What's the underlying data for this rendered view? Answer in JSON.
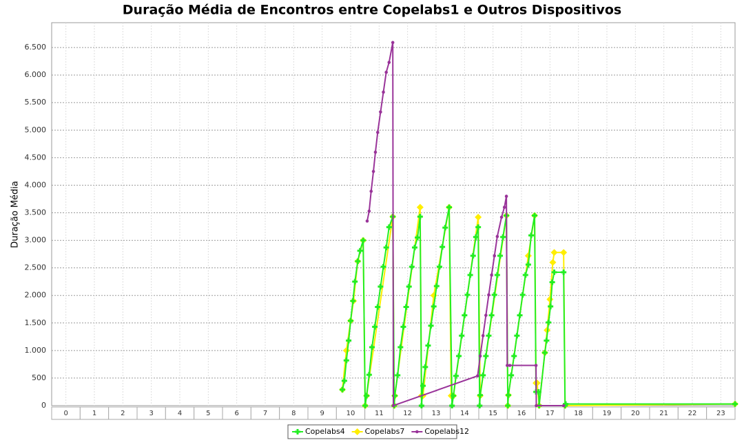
{
  "chart_data": {
    "type": "line",
    "title": "Duração Média de Encontros entre Copelabs1 e Outros Dispositivos",
    "y_label": "Duração Média",
    "xlim": [
      -0.5,
      23.5
    ],
    "xticks": [
      0,
      1,
      2,
      3,
      4,
      5,
      6,
      7,
      8,
      9,
      10,
      11,
      12,
      13,
      14,
      15,
      16,
      17,
      18,
      19,
      20,
      21,
      22,
      23
    ],
    "ylim": [
      0,
      6950
    ],
    "yticks": [
      0,
      {
        "value": 500,
        "label": "500"
      },
      {
        "value": 1000,
        "label": "1.000"
      },
      {
        "value": 1500,
        "label": "1.500"
      },
      {
        "value": 2000,
        "label": "2.000"
      },
      {
        "value": 2500,
        "label": "2.500"
      },
      {
        "value": 3000,
        "label": "3.000"
      },
      {
        "value": 3500,
        "label": "3.500"
      },
      {
        "value": 4000,
        "label": "4.000"
      },
      {
        "value": 4500,
        "label": "4.500"
      },
      {
        "value": 5000,
        "label": "5.000"
      },
      {
        "value": 5500,
        "label": "5.500"
      },
      {
        "value": 6000,
        "label": "6.000"
      },
      {
        "value": 6500,
        "label": "6.500"
      }
    ],
    "grid": true,
    "series": [
      {
        "name": "Copelabs4",
        "color": "#22ee22",
        "marker": "cross",
        "x": [
          9.71,
          9.78,
          9.85,
          9.93,
          10.0,
          10.08,
          10.15,
          10.25,
          10.33,
          10.44,
          10.51,
          10.56,
          10.65,
          10.75,
          10.85,
          10.95,
          11.05,
          11.15,
          11.25,
          11.35,
          11.48,
          11.53,
          11.55,
          11.65,
          11.75,
          11.85,
          11.95,
          12.05,
          12.15,
          12.25,
          12.35,
          12.44,
          12.49,
          12.54,
          12.62,
          12.72,
          12.82,
          12.92,
          13.02,
          13.12,
          13.22,
          13.32,
          13.46,
          13.56,
          13.61,
          13.7,
          13.8,
          13.9,
          14.0,
          14.1,
          14.2,
          14.3,
          14.4,
          14.48,
          14.53,
          14.55,
          14.65,
          14.75,
          14.85,
          14.95,
          15.05,
          15.15,
          15.25,
          15.35,
          15.47,
          15.52,
          15.54,
          15.64,
          15.74,
          15.84,
          15.94,
          16.04,
          16.14,
          16.24,
          16.34,
          16.46,
          16.51,
          16.6,
          16.62,
          16.82,
          16.88,
          16.95,
          17.02,
          17.08,
          17.15,
          17.48,
          17.53,
          17.55,
          23.5
        ],
        "values": [
          290,
          450,
          820,
          1180,
          1540,
          1900,
          2250,
          2620,
          2810,
          3000,
          0,
          180,
          560,
          1060,
          1430,
          1790,
          2160,
          2520,
          2870,
          3240,
          3430,
          0,
          180,
          550,
          1060,
          1430,
          1790,
          2160,
          2520,
          2870,
          3050,
          3430,
          0,
          360,
          700,
          1090,
          1450,
          1800,
          2170,
          2520,
          2880,
          3230,
          3600,
          0,
          180,
          540,
          900,
          1270,
          1640,
          2010,
          2370,
          2720,
          3060,
          3240,
          0,
          190,
          550,
          900,
          1270,
          1640,
          2010,
          2370,
          2720,
          3060,
          3450,
          0,
          190,
          550,
          900,
          1270,
          1640,
          2010,
          2370,
          2560,
          3090,
          3450,
          250,
          250,
          0,
          960,
          1180,
          1510,
          1800,
          2240,
          2420,
          2420,
          0,
          30,
          30
        ]
      },
      {
        "name": "Copelabs7",
        "color": "#ffee00",
        "marker": "diamond",
        "x": [
          9.71,
          9.85,
          10.0,
          10.1,
          10.25,
          10.44,
          10.51,
          10.56,
          11.48,
          11.53,
          11.55,
          12.44,
          12.49,
          12.54,
          12.92,
          13.46,
          13.53,
          13.61,
          14.48,
          14.55,
          15.47,
          15.52,
          15.54,
          16.24,
          16.46,
          16.51,
          16.55,
          16.62,
          16.82,
          16.9,
          17.0,
          17.1,
          17.15,
          17.48,
          17.53,
          23.5
        ],
        "values": [
          290,
          1000,
          1540,
          1900,
          2620,
          3000,
          0,
          180,
          3430,
          0,
          180,
          3600,
          180,
          180,
          2000,
          3600,
          180,
          180,
          3420,
          180,
          3450,
          0,
          190,
          2720,
          3450,
          410,
          410,
          0,
          960,
          1370,
          1930,
          2600,
          2780,
          2780,
          0,
          30
        ]
      },
      {
        "name": "Copelabs12",
        "color": "#993399",
        "marker": "circle",
        "x": [
          10.58,
          10.65,
          10.72,
          10.8,
          10.87,
          10.95,
          11.05,
          11.15,
          11.25,
          11.35,
          11.48,
          11.5,
          14.46,
          14.55,
          14.65,
          14.75,
          14.85,
          14.95,
          15.05,
          15.15,
          15.3,
          15.4,
          15.47,
          15.5,
          15.59,
          16.51,
          16.52,
          17.48
        ],
        "values": [
          3350,
          3530,
          3890,
          4250,
          4600,
          4960,
          5330,
          5690,
          6050,
          6230,
          6590,
          0,
          540,
          900,
          1270,
          1640,
          2010,
          2370,
          2720,
          3070,
          3420,
          3600,
          3800,
          730,
          730,
          730,
          0,
          0
        ]
      }
    ]
  }
}
